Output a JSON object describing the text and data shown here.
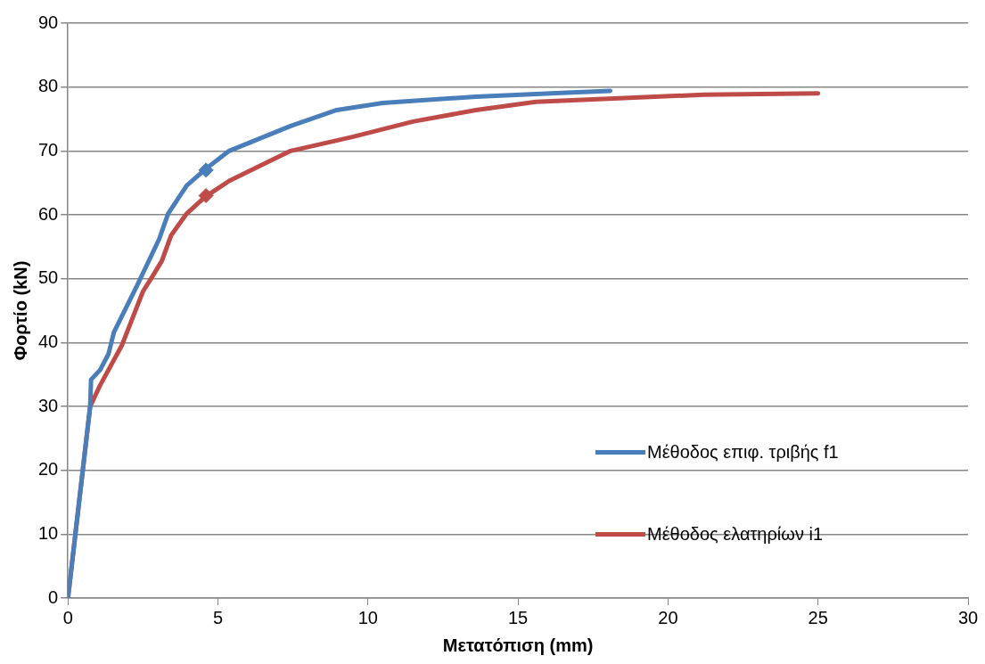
{
  "chart_data": {
    "type": "line",
    "xlabel": "Μετατόπιση (mm)",
    "ylabel": "Φορτίο (kN)",
    "xlim": [
      0,
      30
    ],
    "xticks": [
      0,
      5,
      10,
      15,
      20,
      25,
      30
    ],
    "ylim": [
      0,
      90
    ],
    "yticks": [
      0,
      10,
      20,
      30,
      40,
      50,
      60,
      70,
      80,
      90
    ],
    "grid": "y",
    "legend": "right",
    "line_style": "solid",
    "series": [
      {
        "name": "Μέθοδος επιφ. τριβής f1",
        "color": "#4a7ebb",
        "marker": "none",
        "x": [
          0,
          0.74,
          0.77,
          1.07,
          1.35,
          1.53,
          2.3,
          3.04,
          3.34,
          3.96,
          4.57,
          5.37,
          7.42,
          8.96,
          10.5,
          13.6,
          16.6,
          18.07
        ],
        "values": [
          0,
          30,
          34.2,
          35.7,
          38.2,
          41.6,
          48.9,
          56.2,
          60.2,
          64.6,
          67.1,
          70,
          73.9,
          76.4,
          77.5,
          78.5,
          79.1,
          79.4
        ]
      },
      {
        "name": "Μέθοδος ελατηρίων i1",
        "color": "#be4b48",
        "marker": "none",
        "x": [
          0,
          0.74,
          1.07,
          1.8,
          2.5,
          2.82,
          3.13,
          3.44,
          3.96,
          4.57,
          5.37,
          7.42,
          9.48,
          11.5,
          13.6,
          15.6,
          21.2,
          25
        ],
        "values": [
          0,
          30,
          33.3,
          39.6,
          48,
          50.4,
          52.8,
          56.8,
          60.2,
          62.8,
          65.3,
          70,
          72.2,
          74.6,
          76.4,
          77.7,
          78.8,
          79
        ]
      },
      {
        "color": "#4a7ebb",
        "type": "scatter",
        "marker": "diamond",
        "x": [
          4.6
        ],
        "values": [
          67
        ]
      },
      {
        "color": "#be4b48",
        "type": "scatter",
        "marker": "diamond",
        "x": [
          4.6
        ],
        "values": [
          63
        ]
      }
    ]
  }
}
